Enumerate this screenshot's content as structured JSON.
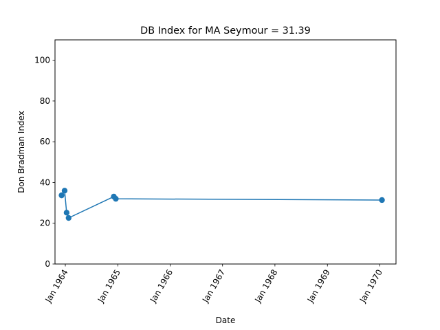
{
  "chart_data": {
    "type": "line",
    "title": "DB Index for MA Seymour = 31.39",
    "xlabel": "Date",
    "ylabel": "Don Bradman Index",
    "xlim": [
      "1963-10-21",
      "1970-04-24"
    ],
    "ylim": [
      0,
      110
    ],
    "x_ticks": [
      "1964-01-01",
      "1965-01-01",
      "1966-01-01",
      "1967-01-01",
      "1968-01-01",
      "1969-01-01",
      "1970-01-01"
    ],
    "x_tick_labels": [
      "Jan 1964",
      "Jan 1965",
      "Jan 1966",
      "Jan 1967",
      "Jan 1968",
      "Jan 1969",
      "Jan 1970"
    ],
    "y_ticks": [
      0,
      20,
      40,
      60,
      80,
      100
    ],
    "y_tick_labels": [
      "0",
      "20",
      "40",
      "60",
      "80",
      "100"
    ],
    "grid": false,
    "legend": "none",
    "series": [
      {
        "color": "#1f77b4",
        "marker": "circle",
        "points": [
          {
            "x": "1963-12-06",
            "y": 33.7
          },
          {
            "x": "1963-12-27",
            "y": 36.0
          },
          {
            "x": "1964-01-10",
            "y": 25.2
          },
          {
            "x": "1964-01-24",
            "y": 22.6
          },
          {
            "x": "1964-12-04",
            "y": 33.1
          },
          {
            "x": "1964-12-18",
            "y": 32.0
          },
          {
            "x": "1970-01-16",
            "y": 31.39
          }
        ]
      }
    ]
  }
}
